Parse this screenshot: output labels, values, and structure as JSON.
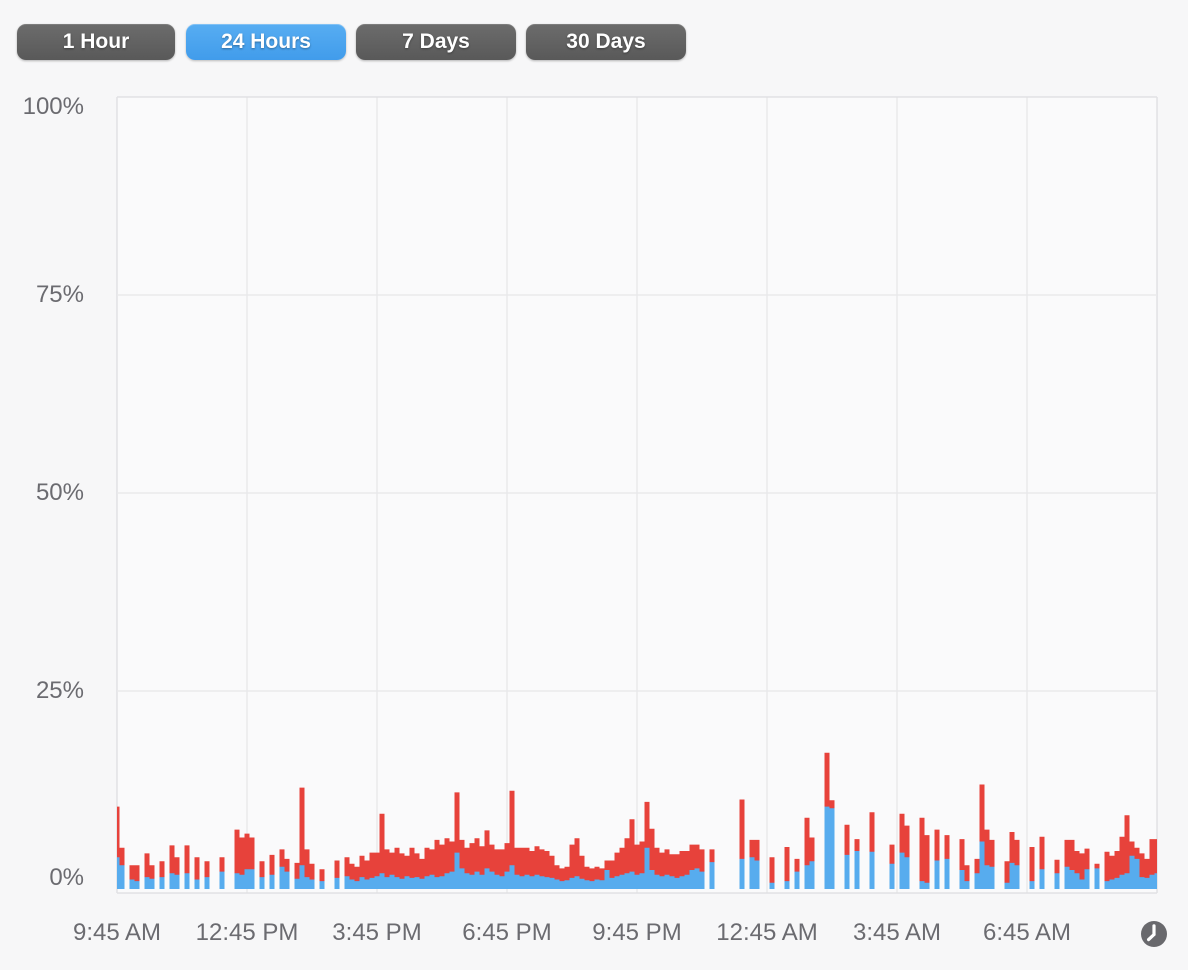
{
  "time_range_selector": {
    "buttons": [
      {
        "label": "1 Hour",
        "selected": false
      },
      {
        "label": "24 Hours",
        "selected": true
      },
      {
        "label": "7 Days",
        "selected": false
      },
      {
        "label": "30 Days",
        "selected": false
      }
    ]
  },
  "icons": {
    "bottom_right": "clock-icon"
  },
  "colors": {
    "selected_range_button": "#4FA6EF",
    "range_button": "#636363",
    "series_blue": "#57ACEE",
    "series_red": "#E7423B",
    "axis_text": "#6B6B70",
    "gridline": "#E9E9EB",
    "page_background": "#F7F7F8"
  },
  "chart_data": {
    "type": "area",
    "stacked": true,
    "title": "",
    "xlabel": "",
    "ylabel": "",
    "time_span": "24 Hours",
    "grid": true,
    "y_axis": {
      "tick_labels": [
        "100%",
        "75%",
        "50%",
        "25%",
        "0%"
      ],
      "range": [
        0,
        100
      ]
    },
    "x_axis": {
      "tick_labels": [
        "9:45 AM",
        "12:45 PM",
        "3:45 PM",
        "6:45 PM",
        "9:45 PM",
        "12:45 AM",
        "3:45 AM",
        "6:45 AM"
      ]
    },
    "legend": null,
    "series": [
      {
        "name": "blue",
        "color": "#57ACEE",
        "values": [
          4,
          3,
          0,
          1.2,
          1,
          0,
          1.5,
          1.3,
          0,
          1.5,
          0,
          2,
          1.8,
          0,
          2,
          0,
          1.2,
          0,
          1.5,
          0,
          0,
          2.2,
          0,
          0,
          2,
          1.8,
          2.5,
          2.5,
          0,
          1.5,
          0,
          1.8,
          0,
          2.8,
          2.2,
          0,
          1.3,
          3,
          1.5,
          1.2,
          0,
          1,
          0,
          0,
          1.4,
          0,
          1.6,
          1.2,
          1,
          1.5,
          1.2,
          1.4,
          1.6,
          2,
          1.5,
          1.8,
          1.5,
          1.3,
          1.6,
          1.4,
          1.5,
          1.3,
          1.6,
          1.8,
          1.5,
          1.6,
          2,
          2.2,
          4.6,
          2.6,
          2,
          1.8,
          2.2,
          1.8,
          2.6,
          2.2,
          1.8,
          1.6,
          2.2,
          3,
          1.8,
          1.6,
          1.8,
          1.6,
          1.8,
          1.6,
          1.5,
          1.4,
          1.2,
          1,
          1.1,
          1.4,
          1.6,
          1.3,
          1.1,
          1,
          1.2,
          1.1,
          2.4,
          1.4,
          1.6,
          1.8,
          2,
          2.2,
          1.8,
          2,
          5.2,
          2.4,
          1.8,
          1.6,
          1.8,
          1.6,
          1.4,
          1.6,
          1.8,
          2.4,
          2.6,
          2.2,
          0,
          3.4,
          0,
          0,
          0,
          0,
          0,
          3.8,
          0,
          4,
          3.6,
          0,
          0,
          0.8,
          0,
          0,
          1,
          0,
          2.2,
          0,
          3,
          3.5,
          0,
          0,
          10.4,
          10.2,
          0,
          0,
          4.3,
          0,
          4.8,
          0,
          0,
          4.7,
          0,
          0,
          0,
          3.2,
          0,
          4.6,
          4,
          0,
          0,
          1,
          0.8,
          0,
          3.6,
          0,
          3.8,
          0,
          0,
          2.4,
          1,
          0,
          2,
          6,
          3,
          2.8,
          0,
          0,
          0.8,
          3.3,
          3,
          0,
          0,
          1,
          0,
          2.5,
          0,
          0,
          2,
          0,
          2.8,
          2.4,
          2,
          1.2,
          2.5,
          0,
          2.6,
          0,
          1,
          1.2,
          1.4,
          1.8,
          2,
          4.2,
          3.8,
          1.5,
          1.4,
          1.8,
          2
        ]
      },
      {
        "name": "red",
        "color": "#E7423B",
        "values": [
          6.4,
          2.2,
          0,
          1.8,
          2,
          0,
          3,
          1.7,
          0,
          2,
          0,
          3.5,
          2.2,
          0,
          3.5,
          0,
          2.8,
          0,
          2,
          0,
          0,
          1.8,
          0,
          0,
          5.5,
          4.7,
          4.5,
          4,
          0,
          2,
          0,
          2.5,
          0,
          2.2,
          1.6,
          0,
          2,
          9.8,
          3.5,
          2,
          0,
          1.5,
          0,
          0,
          2.2,
          0,
          2.4,
          2,
          1.8,
          2.7,
          2.4,
          3.2,
          3,
          7.5,
          3.5,
          2.8,
          3.7,
          3.2,
          2.6,
          3.8,
          3,
          2.5,
          3.6,
          3.2,
          4.7,
          4,
          4.4,
          3.8,
          7.6,
          3.6,
          3.2,
          4,
          4.2,
          3.6,
          4.8,
          3.4,
          3.2,
          3.4,
          3.6,
          9.4,
          3.4,
          3.6,
          3.4,
          3.2,
          3.6,
          3.4,
          3.3,
          2.8,
          1.8,
          1.6,
          1.7,
          4.2,
          4.8,
          2.9,
          1.7,
          1.6,
          1.6,
          1.5,
          1.2,
          2.2,
          3,
          3.4,
          4.4,
          6.6,
          3.8,
          4,
          5.8,
          5.2,
          3.4,
          3,
          3.2,
          2.8,
          3,
          3.2,
          3,
          3.2,
          3,
          2.8,
          0,
          1.6,
          0,
          0,
          0,
          0,
          0,
          7.5,
          0,
          2.2,
          2.6,
          0,
          0,
          3.2,
          0,
          0,
          4.3,
          0,
          1.6,
          0,
          6,
          3,
          0,
          0,
          6.8,
          1,
          0,
          0,
          3.8,
          0,
          1.5,
          0,
          0,
          5,
          0,
          0,
          0,
          2.4,
          0,
          4.9,
          4,
          0,
          0,
          8,
          6,
          0,
          3.9,
          0,
          3,
          0,
          0,
          3.9,
          2,
          0,
          1.8,
          7.2,
          4.5,
          3.4,
          0,
          0,
          2.7,
          3.9,
          3.2,
          0,
          0,
          4.3,
          0,
          4.1,
          0,
          0,
          1.7,
          0,
          3.4,
          3.8,
          2.8,
          3.3,
          2.6,
          0,
          0.6,
          0,
          3.7,
          3,
          3.4,
          4.8,
          7.3,
          1.8,
          1.4,
          3,
          2.4,
          4.5,
          4.3
        ]
      }
    ]
  }
}
